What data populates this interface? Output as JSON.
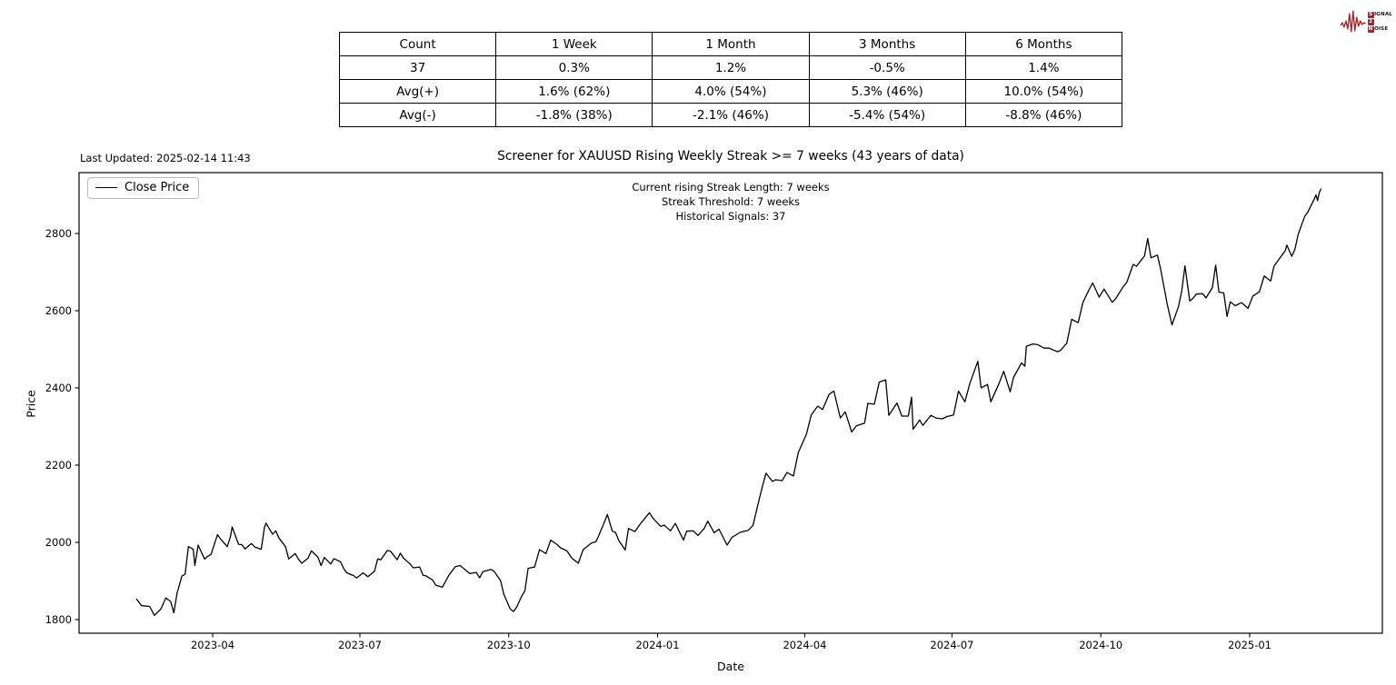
{
  "logo": {
    "badge_s": "S",
    "word_ignal": "IGNAL",
    "badge_2": "2",
    "badge_n": "N",
    "word_oise": "OISE",
    "accent_color": "#b32025"
  },
  "stats_table": {
    "columns": [
      "Count",
      "1 Week",
      "1 Month",
      "3 Months",
      "6 Months"
    ],
    "rows": [
      [
        "37",
        "0.3%",
        "1.2%",
        "-0.5%",
        "1.4%"
      ],
      [
        "Avg(+)",
        "1.6% (62%)",
        "4.0% (54%)",
        "5.3% (46%)",
        "10.0% (54%)"
      ],
      [
        "Avg(-)",
        "-1.8% (38%)",
        "-2.1% (46%)",
        "-5.4% (54%)",
        "-8.8% (46%)"
      ]
    ]
  },
  "chart": {
    "title": "Screener for XAUUSD Rising Weekly Streak >= 7 weeks (43 years of data)",
    "last_updated": "Last Updated: 2025-02-14 11:43",
    "legend": "Close Price",
    "annotations": [
      "Current rising Streak Length: 7 weeks",
      "Streak Threshold: 7 weeks",
      "Historical Signals: 37"
    ],
    "xlabel": "Date",
    "ylabel": "Price"
  },
  "chart_data": {
    "type": "line",
    "title": "Screener for XAUUSD Rising Weekly Streak >= 7 weeks (43 years of data)",
    "xlabel": "Date",
    "ylabel": "Price",
    "grid": false,
    "legend_position": "upper left",
    "line_color": "#000000",
    "ylim": [
      1765,
      2960
    ],
    "x_range": [
      "2023-02-13",
      "2025-02-14"
    ],
    "yticks": [
      1800,
      2000,
      2200,
      2400,
      2600,
      2800
    ],
    "xticks": [
      "2023-04",
      "2023-07",
      "2023-10",
      "2024-01",
      "2024-04",
      "2024-07",
      "2024-10",
      "2025-01"
    ],
    "series": [
      {
        "name": "Close Price",
        "points": [
          [
            "2023-02-13",
            1853
          ],
          [
            "2023-02-16",
            1836
          ],
          [
            "2023-02-21",
            1834
          ],
          [
            "2023-02-24",
            1811
          ],
          [
            "2023-02-28",
            1827
          ],
          [
            "2023-03-03",
            1856
          ],
          [
            "2023-03-06",
            1847
          ],
          [
            "2023-03-08",
            1818
          ],
          [
            "2023-03-10",
            1868
          ],
          [
            "2023-03-13",
            1913
          ],
          [
            "2023-03-15",
            1918
          ],
          [
            "2023-03-17",
            1989
          ],
          [
            "2023-03-20",
            1982
          ],
          [
            "2023-03-21",
            1940
          ],
          [
            "2023-03-23",
            1993
          ],
          [
            "2023-03-27",
            1957
          ],
          [
            "2023-03-29",
            1964
          ],
          [
            "2023-03-31",
            1969
          ],
          [
            "2023-04-04",
            2020
          ],
          [
            "2023-04-06",
            2008
          ],
          [
            "2023-04-10",
            1989
          ],
          [
            "2023-04-12",
            2015
          ],
          [
            "2023-04-13",
            2040
          ],
          [
            "2023-04-17",
            1995
          ],
          [
            "2023-04-19",
            1994
          ],
          [
            "2023-04-21",
            1983
          ],
          [
            "2023-04-25",
            1997
          ],
          [
            "2023-04-27",
            1988
          ],
          [
            "2023-05-01",
            1982
          ],
          [
            "2023-05-03",
            2039
          ],
          [
            "2023-05-04",
            2050
          ],
          [
            "2023-05-08",
            2021
          ],
          [
            "2023-05-10",
            2030
          ],
          [
            "2023-05-12",
            2011
          ],
          [
            "2023-05-16",
            1989
          ],
          [
            "2023-05-18",
            1957
          ],
          [
            "2023-05-22",
            1971
          ],
          [
            "2023-05-24",
            1957
          ],
          [
            "2023-05-26",
            1946
          ],
          [
            "2023-05-30",
            1959
          ],
          [
            "2023-06-01",
            1978
          ],
          [
            "2023-06-05",
            1962
          ],
          [
            "2023-06-07",
            1940
          ],
          [
            "2023-06-09",
            1961
          ],
          [
            "2023-06-13",
            1944
          ],
          [
            "2023-06-15",
            1958
          ],
          [
            "2023-06-19",
            1950
          ],
          [
            "2023-06-21",
            1932
          ],
          [
            "2023-06-23",
            1921
          ],
          [
            "2023-06-27",
            1914
          ],
          [
            "2023-06-29",
            1908
          ],
          [
            "2023-07-03",
            1921
          ],
          [
            "2023-07-06",
            1911
          ],
          [
            "2023-07-10",
            1925
          ],
          [
            "2023-07-12",
            1957
          ],
          [
            "2023-07-14",
            1955
          ],
          [
            "2023-07-18",
            1979
          ],
          [
            "2023-07-20",
            1977
          ],
          [
            "2023-07-24",
            1955
          ],
          [
            "2023-07-26",
            1972
          ],
          [
            "2023-07-28",
            1959
          ],
          [
            "2023-08-01",
            1944
          ],
          [
            "2023-08-03",
            1934
          ],
          [
            "2023-08-07",
            1936
          ],
          [
            "2023-08-09",
            1915
          ],
          [
            "2023-08-11",
            1913
          ],
          [
            "2023-08-15",
            1902
          ],
          [
            "2023-08-17",
            1889
          ],
          [
            "2023-08-21",
            1884
          ],
          [
            "2023-08-25",
            1915
          ],
          [
            "2023-08-29",
            1937
          ],
          [
            "2023-09-01",
            1940
          ],
          [
            "2023-09-05",
            1926
          ],
          [
            "2023-09-07",
            1919
          ],
          [
            "2023-09-11",
            1922
          ],
          [
            "2023-09-13",
            1908
          ],
          [
            "2023-09-15",
            1924
          ],
          [
            "2023-09-20",
            1930
          ],
          [
            "2023-09-22",
            1925
          ],
          [
            "2023-09-26",
            1901
          ],
          [
            "2023-09-28",
            1865
          ],
          [
            "2023-10-02",
            1827
          ],
          [
            "2023-10-04",
            1821
          ],
          [
            "2023-10-06",
            1833
          ],
          [
            "2023-10-09",
            1861
          ],
          [
            "2023-10-11",
            1874
          ],
          [
            "2023-10-13",
            1933
          ],
          [
            "2023-10-17",
            1936
          ],
          [
            "2023-10-20",
            1981
          ],
          [
            "2023-10-24",
            1971
          ],
          [
            "2023-10-27",
            2006
          ],
          [
            "2023-10-31",
            1994
          ],
          [
            "2023-11-02",
            1986
          ],
          [
            "2023-11-06",
            1978
          ],
          [
            "2023-11-09",
            1959
          ],
          [
            "2023-11-13",
            1946
          ],
          [
            "2023-11-16",
            1981
          ],
          [
            "2023-11-21",
            1998
          ],
          [
            "2023-11-24",
            2002
          ],
          [
            "2023-11-28",
            2041
          ],
          [
            "2023-12-01",
            2072
          ],
          [
            "2023-12-04",
            2029
          ],
          [
            "2023-12-06",
            2026
          ],
          [
            "2023-12-08",
            2005
          ],
          [
            "2023-12-12",
            1980
          ],
          [
            "2023-12-14",
            2036
          ],
          [
            "2023-12-18",
            2028
          ],
          [
            "2023-12-21",
            2046
          ],
          [
            "2023-12-27",
            2077
          ],
          [
            "2023-12-29",
            2063
          ],
          [
            "2024-01-03",
            2041
          ],
          [
            "2024-01-05",
            2045
          ],
          [
            "2024-01-09",
            2030
          ],
          [
            "2024-01-12",
            2049
          ],
          [
            "2024-01-17",
            2006
          ],
          [
            "2024-01-19",
            2029
          ],
          [
            "2024-01-23",
            2030
          ],
          [
            "2024-01-26",
            2018
          ],
          [
            "2024-01-30",
            2037
          ],
          [
            "2024-02-01",
            2055
          ],
          [
            "2024-02-05",
            2025
          ],
          [
            "2024-02-08",
            2034
          ],
          [
            "2024-02-13",
            1993
          ],
          [
            "2024-02-16",
            2013
          ],
          [
            "2024-02-21",
            2026
          ],
          [
            "2024-02-26",
            2031
          ],
          [
            "2024-02-29",
            2044
          ],
          [
            "2024-03-04",
            2114
          ],
          [
            "2024-03-06",
            2148
          ],
          [
            "2024-03-08",
            2179
          ],
          [
            "2024-03-12",
            2158
          ],
          [
            "2024-03-14",
            2162
          ],
          [
            "2024-03-18",
            2160
          ],
          [
            "2024-03-21",
            2181
          ],
          [
            "2024-03-25",
            2172
          ],
          [
            "2024-03-28",
            2233
          ],
          [
            "2024-04-02",
            2280
          ],
          [
            "2024-04-05",
            2330
          ],
          [
            "2024-04-09",
            2353
          ],
          [
            "2024-04-12",
            2344
          ],
          [
            "2024-04-16",
            2383
          ],
          [
            "2024-04-19",
            2392
          ],
          [
            "2024-04-23",
            2322
          ],
          [
            "2024-04-26",
            2338
          ],
          [
            "2024-04-30",
            2286
          ],
          [
            "2024-05-03",
            2302
          ],
          [
            "2024-05-08",
            2309
          ],
          [
            "2024-05-10",
            2360
          ],
          [
            "2024-05-14",
            2358
          ],
          [
            "2024-05-17",
            2415
          ],
          [
            "2024-05-21",
            2421
          ],
          [
            "2024-05-23",
            2329
          ],
          [
            "2024-05-28",
            2361
          ],
          [
            "2024-05-31",
            2327
          ],
          [
            "2024-06-04",
            2327
          ],
          [
            "2024-06-06",
            2376
          ],
          [
            "2024-06-07",
            2293
          ],
          [
            "2024-06-11",
            2317
          ],
          [
            "2024-06-13",
            2303
          ],
          [
            "2024-06-18",
            2329
          ],
          [
            "2024-06-21",
            2322
          ],
          [
            "2024-06-25",
            2320
          ],
          [
            "2024-06-28",
            2326
          ],
          [
            "2024-07-02",
            2330
          ],
          [
            "2024-07-05",
            2392
          ],
          [
            "2024-07-09",
            2364
          ],
          [
            "2024-07-12",
            2411
          ],
          [
            "2024-07-17",
            2469
          ],
          [
            "2024-07-19",
            2400
          ],
          [
            "2024-07-23",
            2409
          ],
          [
            "2024-07-25",
            2364
          ],
          [
            "2024-07-30",
            2411
          ],
          [
            "2024-08-02",
            2443
          ],
          [
            "2024-08-06",
            2390
          ],
          [
            "2024-08-08",
            2427
          ],
          [
            "2024-08-13",
            2465
          ],
          [
            "2024-08-15",
            2456
          ],
          [
            "2024-08-16",
            2508
          ],
          [
            "2024-08-20",
            2514
          ],
          [
            "2024-08-23",
            2512
          ],
          [
            "2024-08-27",
            2503
          ],
          [
            "2024-08-30",
            2503
          ],
          [
            "2024-09-04",
            2494
          ],
          [
            "2024-09-06",
            2497
          ],
          [
            "2024-09-10",
            2516
          ],
          [
            "2024-09-13",
            2578
          ],
          [
            "2024-09-17",
            2569
          ],
          [
            "2024-09-20",
            2622
          ],
          [
            "2024-09-24",
            2657
          ],
          [
            "2024-09-26",
            2672
          ],
          [
            "2024-09-30",
            2635
          ],
          [
            "2024-10-03",
            2656
          ],
          [
            "2024-10-08",
            2622
          ],
          [
            "2024-10-10",
            2630
          ],
          [
            "2024-10-15",
            2663
          ],
          [
            "2024-10-17",
            2673
          ],
          [
            "2024-10-21",
            2720
          ],
          [
            "2024-10-23",
            2715
          ],
          [
            "2024-10-28",
            2742
          ],
          [
            "2024-10-30",
            2787
          ],
          [
            "2024-11-01",
            2737
          ],
          [
            "2024-11-05",
            2744
          ],
          [
            "2024-11-07",
            2707
          ],
          [
            "2024-11-11",
            2618
          ],
          [
            "2024-11-14",
            2563
          ],
          [
            "2024-11-18",
            2611
          ],
          [
            "2024-11-20",
            2650
          ],
          [
            "2024-11-22",
            2716
          ],
          [
            "2024-11-25",
            2625
          ],
          [
            "2024-11-27",
            2632
          ],
          [
            "2024-11-29",
            2643
          ],
          [
            "2024-12-03",
            2644
          ],
          [
            "2024-12-05",
            2633
          ],
          [
            "2024-12-09",
            2660
          ],
          [
            "2024-12-11",
            2718
          ],
          [
            "2024-12-13",
            2648
          ],
          [
            "2024-12-16",
            2646
          ],
          [
            "2024-12-18",
            2585
          ],
          [
            "2024-12-20",
            2623
          ],
          [
            "2024-12-23",
            2613
          ],
          [
            "2024-12-27",
            2621
          ],
          [
            "2024-12-31",
            2606
          ],
          [
            "2025-01-03",
            2638
          ],
          [
            "2025-01-07",
            2649
          ],
          [
            "2025-01-10",
            2690
          ],
          [
            "2025-01-14",
            2677
          ],
          [
            "2025-01-16",
            2715
          ],
          [
            "2025-01-21",
            2744
          ],
          [
            "2025-01-23",
            2755
          ],
          [
            "2025-01-24",
            2770
          ],
          [
            "2025-01-27",
            2741
          ],
          [
            "2025-01-29",
            2759
          ],
          [
            "2025-01-31",
            2798
          ],
          [
            "2025-02-04",
            2844
          ],
          [
            "2025-02-06",
            2856
          ],
          [
            "2025-02-10",
            2890
          ],
          [
            "2025-02-11",
            2900
          ],
          [
            "2025-02-12",
            2885
          ],
          [
            "2025-02-13",
            2905
          ],
          [
            "2025-02-14",
            2915
          ]
        ]
      }
    ]
  }
}
